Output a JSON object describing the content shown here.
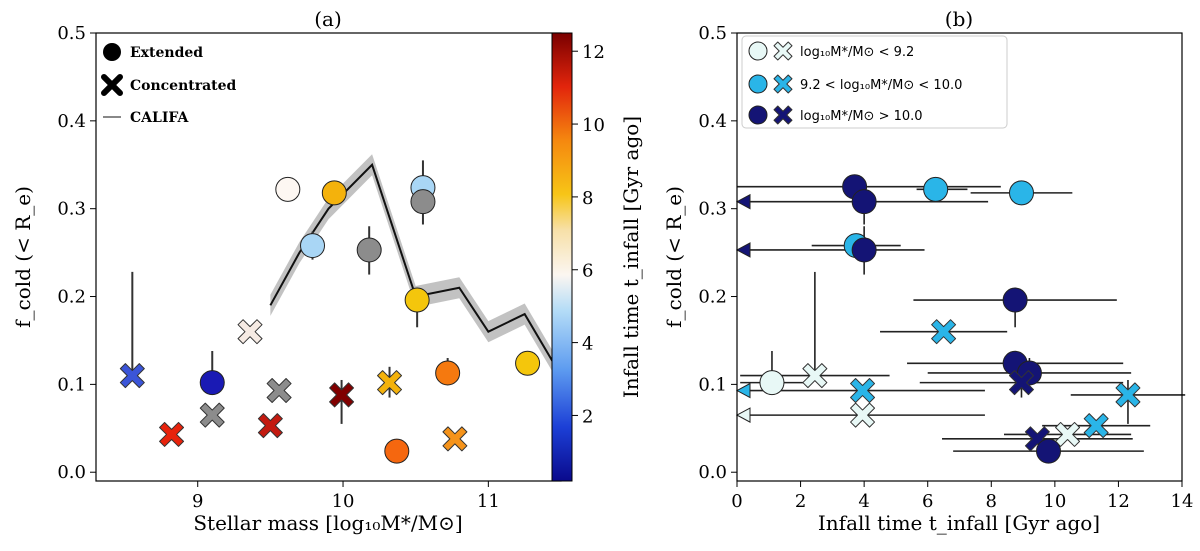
{
  "chart_data": [
    {
      "panel": "a",
      "type": "scatter",
      "title": "(a)",
      "xlabel": "Stellar mass [log₁₀M*/M⊙]",
      "ylabel": "f_cold (< R_e)",
      "xlim": [
        8.3,
        11.5
      ],
      "ylim": [
        -0.01,
        0.5
      ],
      "xticks": [
        9,
        10,
        11
      ],
      "yticks": [
        0.0,
        0.1,
        0.2,
        0.3,
        0.4,
        0.5
      ],
      "xtick_labels": [
        "9",
        "10",
        "11"
      ],
      "ytick_labels": [
        "0.0",
        "0.1",
        "0.2",
        "0.3",
        "0.4",
        "0.5"
      ],
      "legend": {
        "position": "top-left",
        "items": [
          {
            "label": "Extended",
            "marker": "circle"
          },
          {
            "label": "Concentrated",
            "marker": "x"
          },
          {
            "label": "CALIFA",
            "marker": "line"
          }
        ]
      },
      "colorbar": {
        "label": "Infall time t_infall [Gyr ago]",
        "range": [
          0.2,
          12.5
        ],
        "ticks": [
          2,
          4,
          6,
          8,
          10,
          12
        ],
        "tick_labels": [
          "2",
          "4",
          "6",
          "8",
          "10",
          "12"
        ]
      },
      "califa_line": {
        "x": [
          9.5,
          9.7,
          9.9,
          10.2,
          10.5,
          10.8,
          11.0,
          11.25,
          11.5
        ],
        "y": [
          0.19,
          0.25,
          0.3,
          0.35,
          0.2,
          0.21,
          0.16,
          0.18,
          0.11
        ],
        "band": 0.012
      },
      "points": [
        {
          "marker": "x",
          "x": 8.55,
          "y": 0.11,
          "color": "#3b55d8",
          "err_lo": 0.11,
          "err_hi": 0.228
        },
        {
          "marker": "circle",
          "x": 9.1,
          "y": 0.102,
          "color": "#1a1ab4",
          "err_lo": 0.102,
          "err_hi": 0.138
        },
        {
          "marker": "x",
          "x": 8.82,
          "y": 0.043,
          "color": "#e8230c",
          "err_lo": 0.043,
          "err_hi": 0.043
        },
        {
          "marker": "x",
          "x": 9.1,
          "y": 0.065,
          "color": "#8c8c8c",
          "err_lo": 0.065,
          "err_hi": 0.065
        },
        {
          "marker": "x",
          "x": 9.36,
          "y": 0.16,
          "color": "#f6ebe4",
          "err_lo": 0.16,
          "err_hi": 0.16
        },
        {
          "marker": "x",
          "x": 9.5,
          "y": 0.053,
          "color": "#c31a10",
          "err_lo": 0.053,
          "err_hi": 0.053
        },
        {
          "marker": "x",
          "x": 9.56,
          "y": 0.093,
          "color": "#8c8c8c",
          "err_lo": 0.093,
          "err_hi": 0.093
        },
        {
          "marker": "circle",
          "x": 9.62,
          "y": 0.322,
          "color": "#fdf7f2",
          "err_lo": 0.322,
          "err_hi": 0.322
        },
        {
          "marker": "circle",
          "x": 9.79,
          "y": 0.258,
          "color": "#a9d6f5",
          "err_lo": 0.242,
          "err_hi": 0.274
        },
        {
          "marker": "circle",
          "x": 9.94,
          "y": 0.318,
          "color": "#f4b20c",
          "err_lo": 0.318,
          "err_hi": 0.318
        },
        {
          "marker": "x",
          "x": 9.99,
          "y": 0.088,
          "color": "#800000",
          "err_lo": 0.055,
          "err_hi": 0.105
        },
        {
          "marker": "circle",
          "x": 10.18,
          "y": 0.253,
          "color": "#8c8c8c",
          "err_lo": 0.225,
          "err_hi": 0.28
        },
        {
          "marker": "x",
          "x": 10.32,
          "y": 0.102,
          "color": "#f4b20c",
          "err_lo": 0.085,
          "err_hi": 0.12
        },
        {
          "marker": "circle",
          "x": 10.37,
          "y": 0.024,
          "color": "#f5670f",
          "err_lo": 0.024,
          "err_hi": 0.024
        },
        {
          "marker": "circle",
          "x": 10.51,
          "y": 0.196,
          "color": "#f4c60c",
          "err_lo": 0.165,
          "err_hi": 0.21
        },
        {
          "marker": "circle",
          "x": 10.55,
          "y": 0.324,
          "color": "#a9d6f5",
          "err_lo": 0.3,
          "err_hi": 0.355
        },
        {
          "marker": "circle",
          "x": 10.55,
          "y": 0.308,
          "color": "#8c8c8c",
          "err_lo": 0.282,
          "err_hi": 0.33
        },
        {
          "marker": "circle",
          "x": 10.72,
          "y": 0.113,
          "color": "#f5790f",
          "err_lo": 0.1,
          "err_hi": 0.13
        },
        {
          "marker": "x",
          "x": 10.77,
          "y": 0.038,
          "color": "#f5931a",
          "err_lo": 0.038,
          "err_hi": 0.038
        },
        {
          "marker": "circle",
          "x": 11.27,
          "y": 0.124,
          "color": "#f4c60c",
          "err_lo": 0.124,
          "err_hi": 0.124
        }
      ]
    },
    {
      "panel": "b",
      "type": "scatter",
      "title": "(b)",
      "xlabel": "Infall time t_infall [Gyr ago]",
      "ylabel": "f_cold (< R_e)",
      "xlim": [
        0,
        14
      ],
      "ylim": [
        -0.01,
        0.5
      ],
      "xticks": [
        0,
        2,
        4,
        6,
        8,
        10,
        12,
        14
      ],
      "yticks": [
        0.0,
        0.1,
        0.2,
        0.3,
        0.4,
        0.5
      ],
      "xtick_labels": [
        "0",
        "2",
        "4",
        "6",
        "8",
        "10",
        "12",
        "14"
      ],
      "ytick_labels": [
        "0.0",
        "0.1",
        "0.2",
        "0.3",
        "0.4",
        "0.5"
      ],
      "legend": {
        "position": "top-left",
        "items": [
          {
            "label": "log₁₀M*/M⊙ < 9.2",
            "color": "#e8f8f6"
          },
          {
            "label": "9.2 < log₁₀M*/M⊙ < 10.0",
            "color": "#2ab5e8"
          },
          {
            "label": "log₁₀M*/M⊙ > 10.0",
            "color": "#141475"
          }
        ]
      },
      "points": [
        {
          "marker": "circle",
          "x": 3.7,
          "y": 0.325,
          "color": "#141475",
          "xerr": [
            3.8,
            4.6
          ],
          "yerr": [
            0.325,
            0.325
          ],
          "upper_limit": false
        },
        {
          "marker": "circle",
          "x": 4.0,
          "y": 0.308,
          "color": "#141475",
          "xerr": [
            3.9,
            3.9
          ],
          "yerr": [
            0.282,
            0.33
          ],
          "upper_limit": true
        },
        {
          "marker": "circle",
          "x": 6.25,
          "y": 0.322,
          "color": "#2ab5e8",
          "xerr": [
            0.6,
            1.0
          ],
          "yerr": [
            0.322,
            0.322
          ],
          "upper_limit": false
        },
        {
          "marker": "circle",
          "x": 8.95,
          "y": 0.318,
          "color": "#2ab5e8",
          "xerr": [
            1.6,
            1.6
          ],
          "yerr": [
            0.318,
            0.318
          ],
          "upper_limit": false
        },
        {
          "marker": "circle",
          "x": 3.75,
          "y": 0.258,
          "color": "#2ab5e8",
          "xerr": [
            1.4,
            1.4
          ],
          "yerr": [
            0.258,
            0.258
          ],
          "upper_limit": false
        },
        {
          "marker": "circle",
          "x": 4.0,
          "y": 0.253,
          "color": "#141475",
          "xerr": [
            3.9,
            1.9
          ],
          "yerr": [
            0.225,
            0.28
          ],
          "upper_limit": true
        },
        {
          "marker": "circle",
          "x": 8.75,
          "y": 0.196,
          "color": "#141475",
          "xerr": [
            3.2,
            3.2
          ],
          "yerr": [
            0.165,
            0.21
          ],
          "upper_limit": false
        },
        {
          "marker": "x",
          "x": 6.5,
          "y": 0.16,
          "color": "#2ab5e8",
          "xerr": [
            2.0,
            2.0
          ],
          "yerr": [
            0.16,
            0.16
          ],
          "upper_limit": false
        },
        {
          "marker": "circle",
          "x": 8.75,
          "y": 0.124,
          "color": "#141475",
          "xerr": [
            3.4,
            3.4
          ],
          "yerr": [
            0.124,
            0.124
          ],
          "upper_limit": false
        },
        {
          "marker": "circle",
          "x": 9.2,
          "y": 0.113,
          "color": "#141475",
          "xerr": [
            3.2,
            3.2
          ],
          "yerr": [
            0.1,
            0.13
          ],
          "upper_limit": false
        },
        {
          "marker": "x",
          "x": 8.95,
          "y": 0.102,
          "color": "#141475",
          "xerr": [
            3.2,
            3.2
          ],
          "yerr": [
            0.085,
            0.12
          ],
          "upper_limit": false
        },
        {
          "marker": "circle",
          "x": 1.1,
          "y": 0.102,
          "color": "#e8f8f6",
          "xerr": [
            1.0,
            1.0
          ],
          "yerr": [
            0.102,
            0.138
          ],
          "upper_limit": false
        },
        {
          "marker": "x",
          "x": 2.45,
          "y": 0.11,
          "color": "#e8f8f6",
          "xerr": [
            2.35,
            2.35
          ],
          "yerr": [
            0.11,
            0.228
          ],
          "upper_limit": false
        },
        {
          "marker": "x",
          "x": 3.95,
          "y": 0.093,
          "color": "#2ab5e8",
          "xerr": [
            3.85,
            3.85
          ],
          "yerr": [
            0.093,
            0.093
          ],
          "upper_limit": true
        },
        {
          "marker": "x",
          "x": 3.95,
          "y": 0.065,
          "color": "#e8f8f6",
          "xerr": [
            3.85,
            3.85
          ],
          "yerr": [
            0.065,
            0.065
          ],
          "upper_limit": true
        },
        {
          "marker": "x",
          "x": 12.3,
          "y": 0.088,
          "color": "#2ab5e8",
          "xerr": [
            1.8,
            1.8
          ],
          "yerr": [
            0.055,
            0.105
          ],
          "upper_limit": false
        },
        {
          "marker": "x",
          "x": 11.3,
          "y": 0.053,
          "color": "#2ab5e8",
          "xerr": [
            1.7,
            1.7
          ],
          "yerr": [
            0.053,
            0.053
          ],
          "upper_limit": false
        },
        {
          "marker": "x",
          "x": 10.4,
          "y": 0.043,
          "color": "#e8f8f6",
          "xerr": [
            2.0,
            2.0
          ],
          "yerr": [
            0.043,
            0.043
          ],
          "upper_limit": false
        },
        {
          "marker": "x",
          "x": 9.45,
          "y": 0.038,
          "color": "#141475",
          "xerr": [
            3.0,
            3.0
          ],
          "yerr": [
            0.038,
            0.038
          ],
          "upper_limit": false
        },
        {
          "marker": "circle",
          "x": 9.8,
          "y": 0.024,
          "color": "#141475",
          "xerr": [
            3.0,
            3.0
          ],
          "yerr": [
            0.024,
            0.024
          ],
          "upper_limit": false
        }
      ]
    }
  ]
}
